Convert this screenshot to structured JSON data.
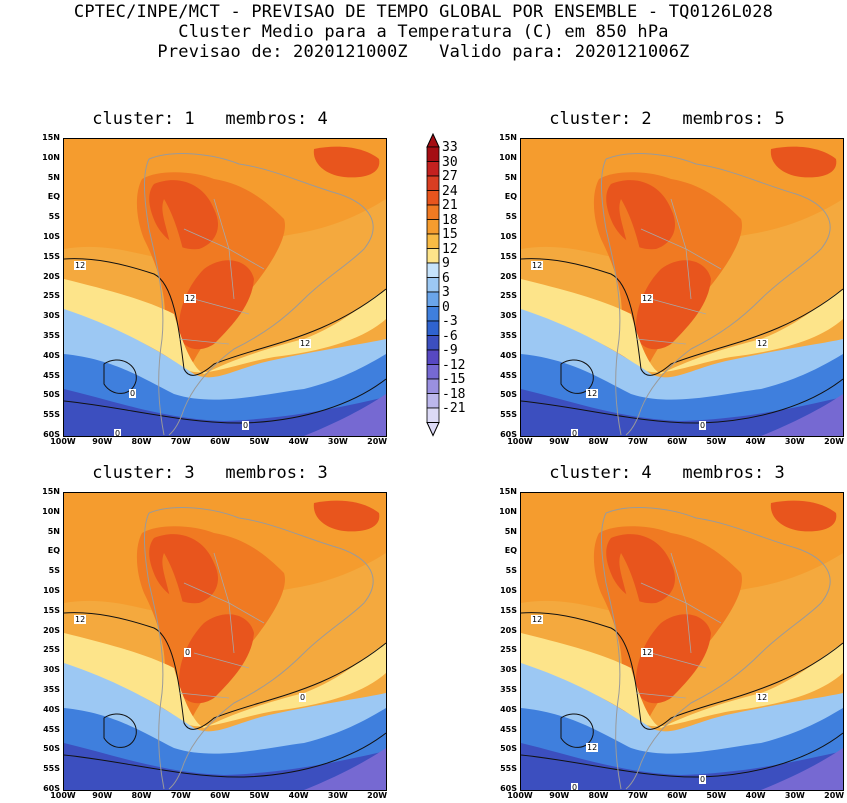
{
  "header": {
    "line1": "CPTEC/INPE/MCT - PREVISAO DE TEMPO GLOBAL POR ENSEMBLE - TQ0126L028",
    "line2": "Cluster Medio para a Temperatura (C) em 850 hPa",
    "line3": "Previsao de: 2020121000Z   Valido para: 2020121006Z"
  },
  "axes": {
    "lat_labels": [
      "15N",
      "10N",
      "5N",
      "EQ",
      "5S",
      "10S",
      "15S",
      "20S",
      "25S",
      "30S",
      "35S",
      "40S",
      "45S",
      "50S",
      "55S",
      "60S"
    ],
    "lon_labels": [
      "100W",
      "90W",
      "80W",
      "70W",
      "60W",
      "50W",
      "40W",
      "30W",
      "20W"
    ]
  },
  "colorbar": {
    "labels": [
      "33",
      "30",
      "27",
      "24",
      "21",
      "18",
      "15",
      "12",
      "9",
      "6",
      "3",
      "0",
      "-3",
      "-6",
      "-9",
      "-12",
      "-15",
      "-18",
      "-21"
    ],
    "colors": [
      "#a50d13",
      "#c4211f",
      "#d93e22",
      "#e8551d",
      "#f07a22",
      "#f59c2e",
      "#f8bb45",
      "#fde48a",
      "#c6e3fb",
      "#9cc8f3",
      "#6aa5ea",
      "#3f7fdd",
      "#2f63cf",
      "#3c4fbf",
      "#5748c2",
      "#7669d2",
      "#9a90e0",
      "#bcb7ec",
      "#dcdaf6"
    ]
  },
  "panels": [
    {
      "title": "cluster: 1   membros: 4",
      "contour_labels": [
        "12",
        "12",
        "12",
        "0",
        "0",
        "0"
      ]
    },
    {
      "title": "cluster: 2   membros: 5",
      "contour_labels": [
        "12",
        "12",
        "12",
        "12",
        "0",
        "0"
      ]
    },
    {
      "title": "cluster: 3   membros: 3",
      "contour_labels": [
        "12",
        "0",
        "0"
      ]
    },
    {
      "title": "cluster: 4   membros: 3",
      "contour_labels": [
        "12",
        "12",
        "12",
        "12",
        "0",
        "0"
      ]
    }
  ]
}
